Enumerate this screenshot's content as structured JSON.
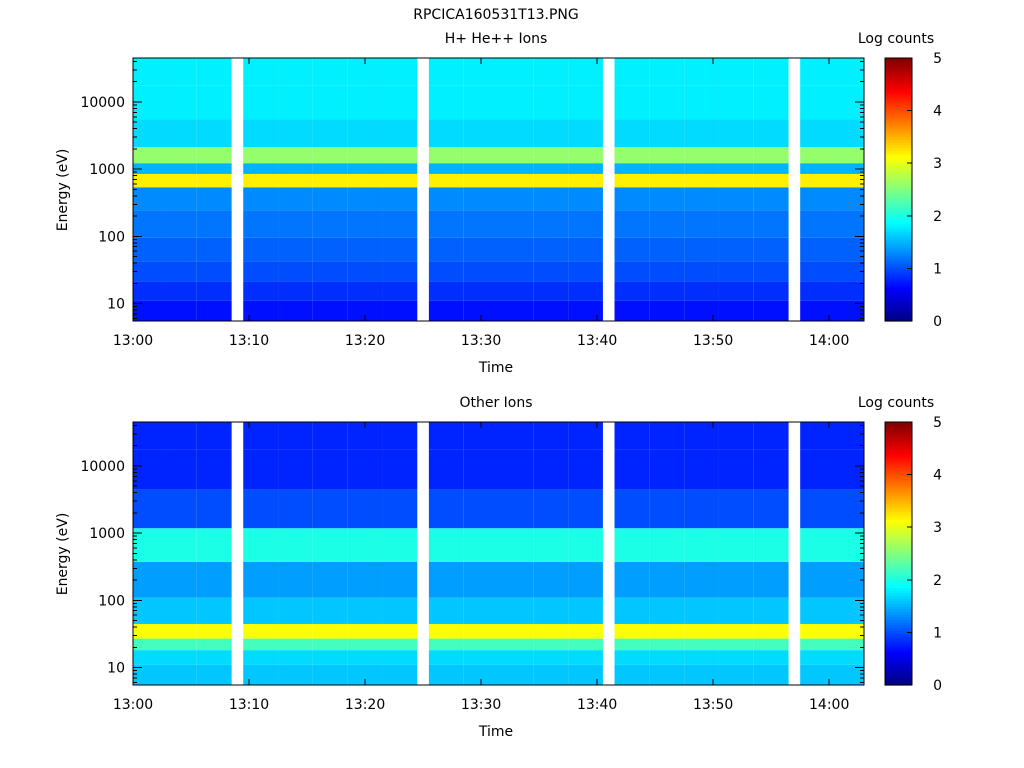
{
  "figure_title": "RPCICA160531T13.PNG",
  "chart_data": [
    {
      "type": "heatmap",
      "title": "H+ He++ Ions",
      "xlabel": "Time",
      "ylabel": "Energy (eV)",
      "x_ticks": [
        "13:00",
        "13:10",
        "13:20",
        "13:30",
        "13:40",
        "13:50",
        "14:00"
      ],
      "x_range": [
        "13:00",
        "14:03"
      ],
      "time_bins": [
        "13:01",
        "13:04",
        "13:07",
        "13:11",
        "13:14",
        "13:17",
        "13:20",
        "13:23",
        "13:27",
        "13:30",
        "13:33",
        "13:36",
        "13:39",
        "13:43",
        "13:46",
        "13:49",
        "13:52",
        "13:55",
        "13:59",
        "14:02"
      ],
      "y_scale": "log",
      "y_ticks": [
        "10",
        "100",
        "1000",
        "10000"
      ],
      "y_range_ev": [
        5.5,
        45000
      ],
      "energy_bands_ev": [
        {
          "energy_ev": 8,
          "log_counts": 0.7
        },
        {
          "energy_ev": 15,
          "log_counts": 0.85
        },
        {
          "energy_ev": 30,
          "log_counts": 1.0
        },
        {
          "energy_ev": 60,
          "log_counts": 1.1
        },
        {
          "energy_ev": 150,
          "log_counts": 1.2
        },
        {
          "energy_ev": 400,
          "log_counts": 1.3
        },
        {
          "energy_ev": 720,
          "log_counts": 3.2
        },
        {
          "energy_ev": 1000,
          "log_counts": 1.5
        },
        {
          "energy_ev": 1500,
          "log_counts": 2.6
        },
        {
          "energy_ev": 3000,
          "log_counts": 1.7
        },
        {
          "energy_ev": 10000,
          "log_counts": 1.8
        },
        {
          "energy_ev": 30000,
          "log_counts": 1.8
        }
      ],
      "colorbar": {
        "label": "Log counts",
        "ticks": [
          "0",
          "1",
          "2",
          "3",
          "4",
          "5"
        ],
        "range": [
          0,
          5
        ],
        "colormap": "jet"
      }
    },
    {
      "type": "heatmap",
      "title": "Other Ions",
      "xlabel": "Time",
      "ylabel": "Energy (eV)",
      "x_ticks": [
        "13:00",
        "13:10",
        "13:20",
        "13:30",
        "13:40",
        "13:50",
        "14:00"
      ],
      "x_range": [
        "13:00",
        "14:03"
      ],
      "time_bins": [
        "13:01",
        "13:04",
        "13:07",
        "13:11",
        "13:14",
        "13:17",
        "13:20",
        "13:23",
        "13:27",
        "13:30",
        "13:33",
        "13:36",
        "13:39",
        "13:43",
        "13:46",
        "13:49",
        "13:52",
        "13:55",
        "13:59",
        "14:02"
      ],
      "y_scale": "log",
      "y_ticks": [
        "10",
        "100",
        "1000",
        "10000"
      ],
      "y_range_ev": [
        5.5,
        45000
      ],
      "energy_bands_ev": [
        {
          "energy_ev": 8,
          "log_counts": 1.6
        },
        {
          "energy_ev": 15,
          "log_counts": 1.7
        },
        {
          "energy_ev": 22,
          "log_counts": 2.2
        },
        {
          "energy_ev": 33,
          "log_counts": 3.1
        },
        {
          "energy_ev": 60,
          "log_counts": 1.6
        },
        {
          "energy_ev": 200,
          "log_counts": 1.4
        },
        {
          "energy_ev": 700,
          "log_counts": 2.0
        },
        {
          "energy_ev": 2000,
          "log_counts": 1.0
        },
        {
          "energy_ev": 10000,
          "log_counts": 0.8
        },
        {
          "energy_ev": 30000,
          "log_counts": 0.8
        }
      ],
      "colorbar": {
        "label": "Log counts",
        "ticks": [
          "0",
          "1",
          "2",
          "3",
          "4",
          "5"
        ],
        "range": [
          0,
          5
        ],
        "colormap": "jet"
      }
    }
  ]
}
